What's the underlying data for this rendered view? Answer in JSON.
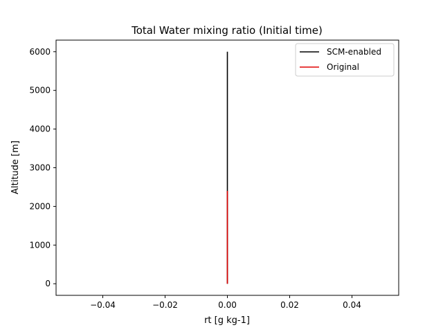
{
  "chart_data": {
    "type": "line",
    "title": "Total Water mixing ratio (Initial time)",
    "xlabel": "rt [g kg-1]",
    "ylabel": "Altitude [m]",
    "xlim": [
      -0.055,
      0.055
    ],
    "ylim": [
      -300,
      6300
    ],
    "x_ticks": [
      -0.04,
      -0.02,
      0.0,
      0.02,
      0.04
    ],
    "x_tick_labels": [
      "−0.04",
      "−0.02",
      "0.00",
      "0.02",
      "0.04"
    ],
    "y_ticks": [
      0,
      1000,
      2000,
      3000,
      4000,
      5000,
      6000
    ],
    "y_tick_labels": [
      "0",
      "1000",
      "2000",
      "3000",
      "4000",
      "5000",
      "6000"
    ],
    "grid": false,
    "legend_position": "top-right",
    "series": [
      {
        "name": "SCM-enabled",
        "color": "#000000",
        "x": [
          0.0,
          0.0
        ],
        "y": [
          0,
          6000
        ]
      },
      {
        "name": "Original",
        "color": "#e00000",
        "x": [
          0.0,
          0.0
        ],
        "y": [
          0,
          2400
        ]
      }
    ]
  }
}
